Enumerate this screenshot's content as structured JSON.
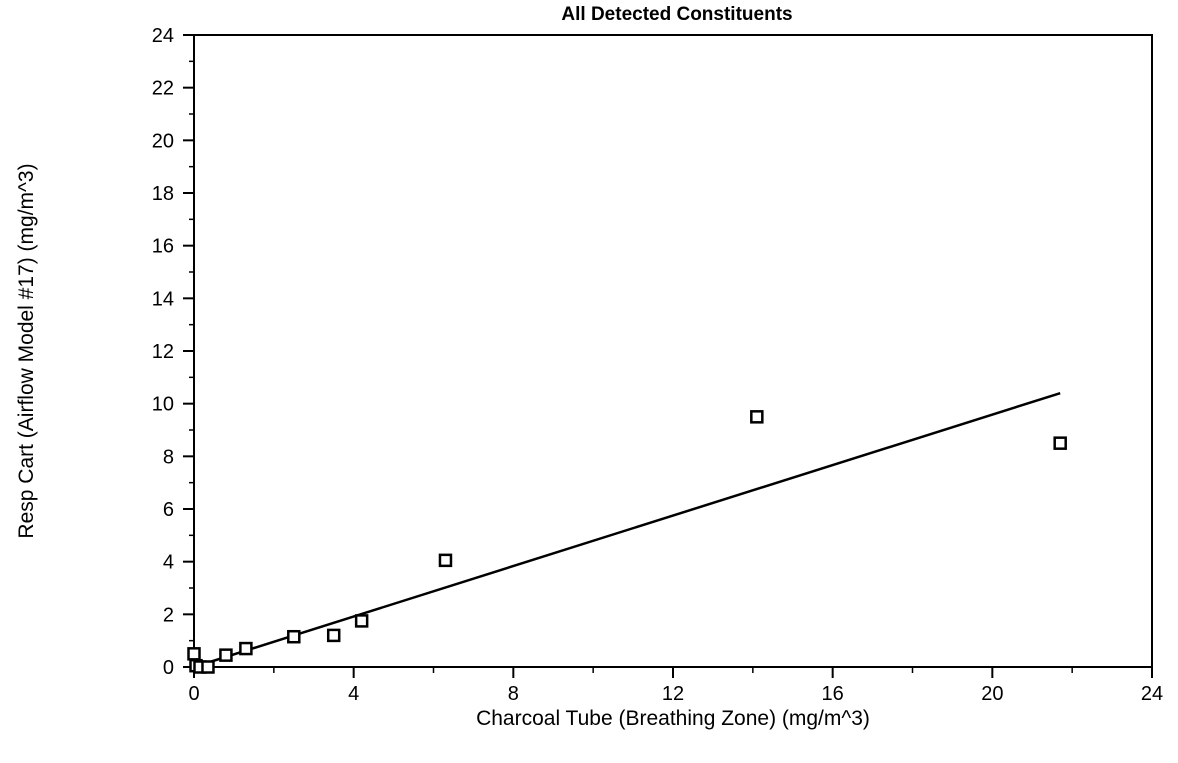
{
  "chart_data": {
    "type": "scatter",
    "title": "All Detected Constituents",
    "xlabel": "Charcoal Tube (Breathing Zone) (mg/m^3)",
    "ylabel": "Resp Cart (Airflow Model #17) (mg/m^3)",
    "xlim": [
      0,
      24
    ],
    "ylim": [
      0,
      24
    ],
    "x_ticks": [
      0,
      4,
      8,
      12,
      16,
      20,
      24
    ],
    "y_ticks": [
      0,
      2,
      4,
      6,
      8,
      10,
      12,
      14,
      16,
      18,
      20,
      22,
      24
    ],
    "grid": false,
    "legend": "none",
    "marker": "open-square",
    "series": [
      {
        "x": [
          0.0,
          0.05,
          0.15,
          0.35,
          0.8,
          1.3,
          2.5,
          3.5,
          4.2,
          6.3,
          14.1,
          21.7
        ],
        "y": [
          0.5,
          0.05,
          0.0,
          0.0,
          0.45,
          0.7,
          1.15,
          1.2,
          1.75,
          4.05,
          9.5,
          8.5
        ]
      }
    ],
    "trendline": {
      "x": [
        0,
        21.7
      ],
      "y": [
        0,
        10.4
      ]
    }
  }
}
